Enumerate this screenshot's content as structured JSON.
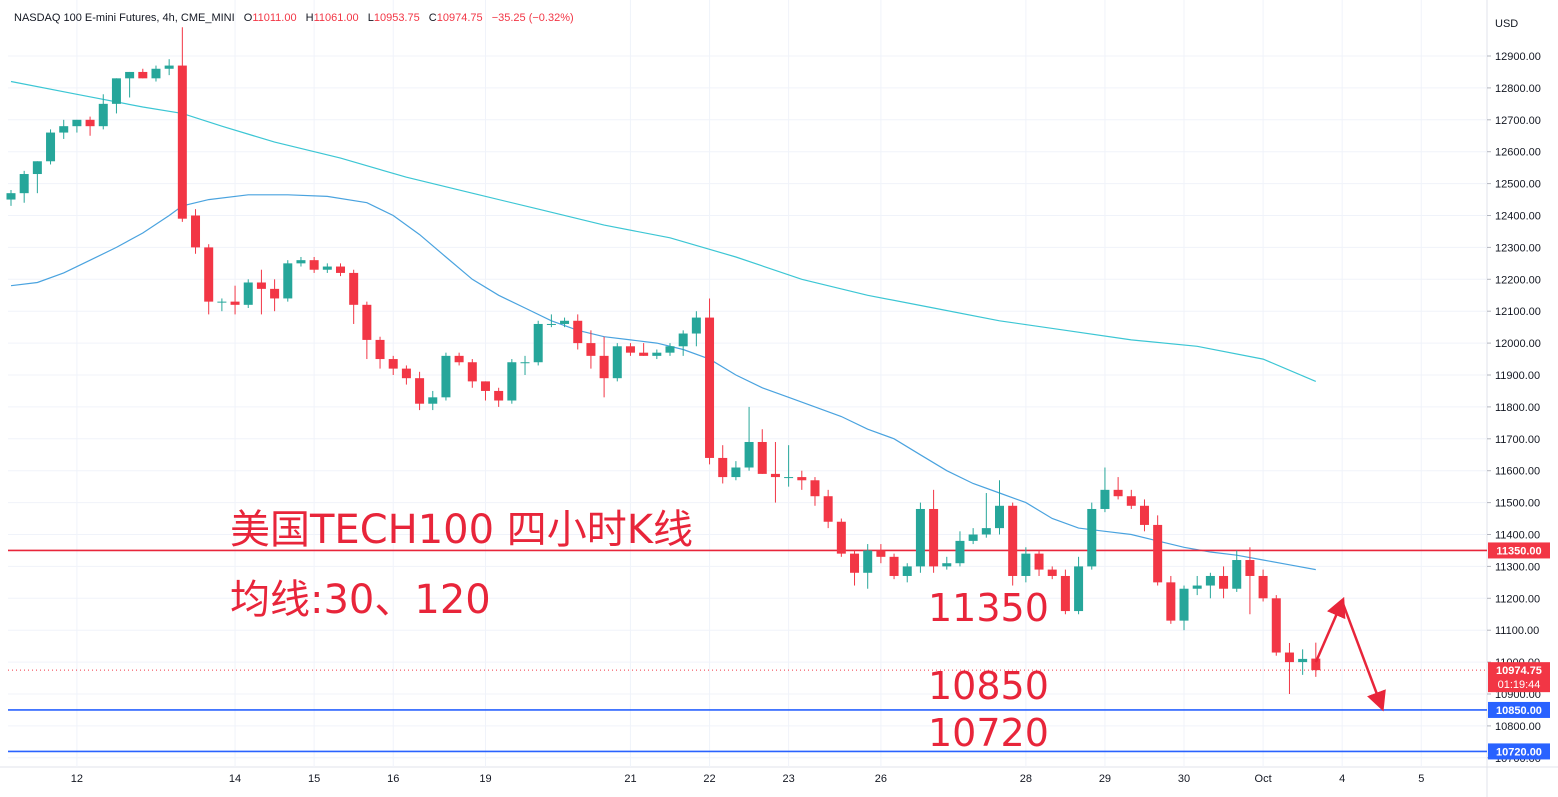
{
  "header": {
    "symbol": "NASDAQ 100 E-mini Futures, 4h, CME_MINI",
    "o_label": "O",
    "o_value": "11011.00",
    "h_label": "H",
    "h_value": "11061.00",
    "l_label": "L",
    "l_value": "10953.75",
    "c_label": "C",
    "c_value": "10974.75",
    "change": "−35.25 (−0.32%)"
  },
  "currency": "USD",
  "annotations": {
    "title": "美国TECH100 四小时K线",
    "ma": "均线:30、120",
    "level_resistance": "11350",
    "level_support1": "10850",
    "level_support2": "10720"
  },
  "colors": {
    "up": "#26a69a",
    "down": "#f23645",
    "ma_fast": "#4aa3df",
    "ma_slow": "#3cc6d4",
    "resistance": "#e8253a",
    "support": "#2962ff",
    "annotation": "#e8253a"
  },
  "chart_data": {
    "type": "candlestick",
    "y_axis": {
      "ticks": [
        "12900.00",
        "12800.00",
        "12700.00",
        "12600.00",
        "12500.00",
        "12400.00",
        "12300.00",
        "12200.00",
        "12100.00",
        "12000.00",
        "11900.00",
        "11800.00",
        "11700.00",
        "11600.00",
        "11500.00",
        "11400.00",
        "11300.00",
        "11200.00",
        "11100.00",
        "11000.00",
        "10900.00",
        "10800.00",
        "10700.00"
      ],
      "range": [
        10700,
        12990
      ]
    },
    "x_axis": {
      "ticks": [
        "12",
        "14",
        "15",
        "16",
        "19",
        "21",
        "22",
        "23",
        "26",
        "28",
        "29",
        "30",
        "Oct",
        "4",
        "5"
      ]
    },
    "price_labels": [
      {
        "text": "11350.00",
        "value": 11350,
        "color": "#f23645"
      },
      {
        "text": "10974.75",
        "value": 10974.75,
        "color": "#f23645",
        "sub": "01:19:44"
      },
      {
        "text": "10850.00",
        "value": 10850,
        "color": "#2962ff"
      },
      {
        "text": "10720.00",
        "value": 10720,
        "color": "#2962ff"
      }
    ],
    "horizontal_lines": [
      {
        "value": 11350,
        "color": "#e8253a"
      },
      {
        "value": 10850,
        "color": "#2962ff"
      },
      {
        "value": 10720,
        "color": "#2962ff"
      }
    ],
    "last_price": 10974.75,
    "candles": [
      [
        12450,
        12480,
        12430,
        12470
      ],
      [
        12470,
        12540,
        12440,
        12530
      ],
      [
        12530,
        12570,
        12470,
        12570
      ],
      [
        12570,
        12670,
        12560,
        12660
      ],
      [
        12660,
        12700,
        12640,
        12680
      ],
      [
        12680,
        12700,
        12660,
        12700
      ],
      [
        12700,
        12710,
        12650,
        12680
      ],
      [
        12680,
        12780,
        12670,
        12750
      ],
      [
        12750,
        12830,
        12720,
        12830
      ],
      [
        12830,
        12850,
        12770,
        12850
      ],
      [
        12850,
        12860,
        12830,
        12830
      ],
      [
        12830,
        12870,
        12820,
        12860
      ],
      [
        12860,
        12890,
        12840,
        12870
      ],
      [
        12870,
        12990,
        12380,
        12390
      ],
      [
        12400,
        12420,
        12280,
        12300
      ],
      [
        12300,
        12310,
        12090,
        12130
      ],
      [
        12130,
        12140,
        12100,
        12130
      ],
      [
        12130,
        12180,
        12090,
        12120
      ],
      [
        12120,
        12200,
        12110,
        12190
      ],
      [
        12190,
        12230,
        12090,
        12170
      ],
      [
        12170,
        12200,
        12100,
        12140
      ],
      [
        12140,
        12260,
        12130,
        12250
      ],
      [
        12250,
        12270,
        12240,
        12260
      ],
      [
        12260,
        12270,
        12220,
        12230
      ],
      [
        12230,
        12250,
        12220,
        12240
      ],
      [
        12240,
        12250,
        12210,
        12220
      ],
      [
        12220,
        12230,
        12060,
        12120
      ],
      [
        12120,
        12130,
        11950,
        12010
      ],
      [
        12010,
        12020,
        11920,
        11950
      ],
      [
        11950,
        11960,
        11900,
        11920
      ],
      [
        11920,
        11930,
        11870,
        11890
      ],
      [
        11890,
        11910,
        11790,
        11810
      ],
      [
        11810,
        11850,
        11790,
        11830
      ],
      [
        11830,
        11970,
        11820,
        11960
      ],
      [
        11960,
        11970,
        11930,
        11940
      ],
      [
        11940,
        11950,
        11860,
        11880
      ],
      [
        11880,
        11880,
        11820,
        11850
      ],
      [
        11850,
        11860,
        11800,
        11820
      ],
      [
        11820,
        11950,
        11810,
        11940
      ],
      [
        11940,
        11960,
        11900,
        11940
      ],
      [
        11940,
        12070,
        11930,
        12060
      ],
      [
        12060,
        12090,
        12050,
        12060
      ],
      [
        12060,
        12080,
        12050,
        12070
      ],
      [
        12070,
        12090,
        11980,
        12000
      ],
      [
        12000,
        12040,
        11920,
        11960
      ],
      [
        11960,
        12020,
        11830,
        11890
      ],
      [
        11890,
        12000,
        11880,
        11990
      ],
      [
        11990,
        12000,
        11960,
        11970
      ],
      [
        11970,
        12000,
        11960,
        11960
      ],
      [
        11960,
        11980,
        11950,
        11970
      ],
      [
        11970,
        12000,
        11960,
        11990
      ],
      [
        11990,
        12040,
        11960,
        12030
      ],
      [
        12030,
        12100,
        11990,
        12080
      ],
      [
        12080,
        12140,
        11620,
        11640
      ],
      [
        11640,
        11680,
        11560,
        11580
      ],
      [
        11580,
        11630,
        11570,
        11610
      ],
      [
        11610,
        11800,
        11600,
        11690
      ],
      [
        11690,
        11730,
        11590,
        11590
      ],
      [
        11590,
        11690,
        11500,
        11580
      ],
      [
        11580,
        11680,
        11550,
        11580
      ],
      [
        11580,
        11600,
        11540,
        11570
      ],
      [
        11570,
        11580,
        11490,
        11520
      ],
      [
        11520,
        11540,
        11420,
        11440
      ],
      [
        11440,
        11450,
        11330,
        11340
      ],
      [
        11340,
        11350,
        11240,
        11280
      ],
      [
        11280,
        11370,
        11230,
        11350
      ],
      [
        11350,
        11370,
        11310,
        11330
      ],
      [
        11330,
        11340,
        11260,
        11270
      ],
      [
        11270,
        11310,
        11250,
        11300
      ],
      [
        11300,
        11500,
        11280,
        11480
      ],
      [
        11480,
        11540,
        11280,
        11300
      ],
      [
        11300,
        11330,
        11290,
        11310
      ],
      [
        11310,
        11410,
        11300,
        11380
      ],
      [
        11380,
        11420,
        11370,
        11400
      ],
      [
        11400,
        11530,
        11390,
        11420
      ],
      [
        11420,
        11570,
        11400,
        11490
      ],
      [
        11490,
        11500,
        11240,
        11270
      ],
      [
        11270,
        11360,
        11250,
        11340
      ],
      [
        11340,
        11350,
        11270,
        11290
      ],
      [
        11290,
        11300,
        11260,
        11270
      ],
      [
        11270,
        11290,
        11150,
        11160
      ],
      [
        11160,
        11330,
        11150,
        11300
      ],
      [
        11300,
        11500,
        11290,
        11480
      ],
      [
        11480,
        11610,
        11470,
        11540
      ],
      [
        11540,
        11580,
        11510,
        11520
      ],
      [
        11520,
        11540,
        11480,
        11490
      ],
      [
        11490,
        11510,
        11410,
        11430
      ],
      [
        11430,
        11460,
        11240,
        11250
      ],
      [
        11250,
        11270,
        11120,
        11130
      ],
      [
        11130,
        11240,
        11100,
        11230
      ],
      [
        11230,
        11270,
        11210,
        11240
      ],
      [
        11240,
        11280,
        11200,
        11270
      ],
      [
        11270,
        11300,
        11200,
        11230
      ],
      [
        11230,
        11350,
        11220,
        11320
      ],
      [
        11320,
        11360,
        11150,
        11270
      ],
      [
        11270,
        11290,
        11190,
        11200
      ],
      [
        11200,
        11210,
        11020,
        11030
      ],
      [
        11030,
        11060,
        10900,
        11000
      ],
      [
        11000,
        11040,
        10960,
        11010
      ],
      [
        11011,
        11061,
        10953.75,
        10974.75
      ]
    ],
    "series": [
      {
        "name": "30",
        "color": "#4aa3df",
        "values": [
          [
            0,
            12180
          ],
          [
            2,
            12190
          ],
          [
            4,
            12220
          ],
          [
            6,
            12260
          ],
          [
            8,
            12300
          ],
          [
            10,
            12345
          ],
          [
            12,
            12400
          ],
          [
            13,
            12430
          ],
          [
            15,
            12450
          ],
          [
            18,
            12465
          ],
          [
            21,
            12465
          ],
          [
            24,
            12460
          ],
          [
            27,
            12440
          ],
          [
            29,
            12400
          ],
          [
            31,
            12340
          ],
          [
            33,
            12270
          ],
          [
            35,
            12200
          ],
          [
            37,
            12150
          ],
          [
            39,
            12110
          ],
          [
            41,
            12070
          ],
          [
            43,
            12040
          ],
          [
            45,
            12020
          ],
          [
            47,
            12010
          ],
          [
            49,
            12000
          ],
          [
            51,
            11980
          ],
          [
            53,
            11950
          ],
          [
            55,
            11900
          ],
          [
            57,
            11860
          ],
          [
            59,
            11830
          ],
          [
            61,
            11800
          ],
          [
            63,
            11770
          ],
          [
            65,
            11730
          ],
          [
            67,
            11700
          ],
          [
            69,
            11650
          ],
          [
            71,
            11600
          ],
          [
            73,
            11560
          ],
          [
            75,
            11530
          ],
          [
            77,
            11500
          ],
          [
            79,
            11450
          ],
          [
            81,
            11420
          ],
          [
            83,
            11410
          ],
          [
            85,
            11400
          ],
          [
            87,
            11380
          ],
          [
            89,
            11360
          ],
          [
            91,
            11345
          ],
          [
            93,
            11335
          ],
          [
            95,
            11320
          ],
          [
            97,
            11305
          ],
          [
            99,
            11290
          ]
        ]
      },
      {
        "name": "120",
        "color": "#3cc6d4",
        "values": [
          [
            0,
            12820
          ],
          [
            5,
            12780
          ],
          [
            10,
            12740
          ],
          [
            13,
            12720
          ],
          [
            16,
            12680
          ],
          [
            20,
            12630
          ],
          [
            25,
            12580
          ],
          [
            30,
            12520
          ],
          [
            35,
            12470
          ],
          [
            40,
            12420
          ],
          [
            45,
            12370
          ],
          [
            50,
            12330
          ],
          [
            55,
            12270
          ],
          [
            60,
            12200
          ],
          [
            65,
            12150
          ],
          [
            70,
            12110
          ],
          [
            75,
            12070
          ],
          [
            80,
            12040
          ],
          [
            85,
            12010
          ],
          [
            90,
            11990
          ],
          [
            95,
            11950
          ],
          [
            99,
            11880
          ]
        ]
      }
    ],
    "projection": [
      {
        "from": [
          99,
          11000
        ],
        "to": [
          101,
          11190
        ]
      },
      {
        "from": [
          101,
          11190
        ],
        "to": [
          104,
          10860
        ]
      }
    ]
  }
}
